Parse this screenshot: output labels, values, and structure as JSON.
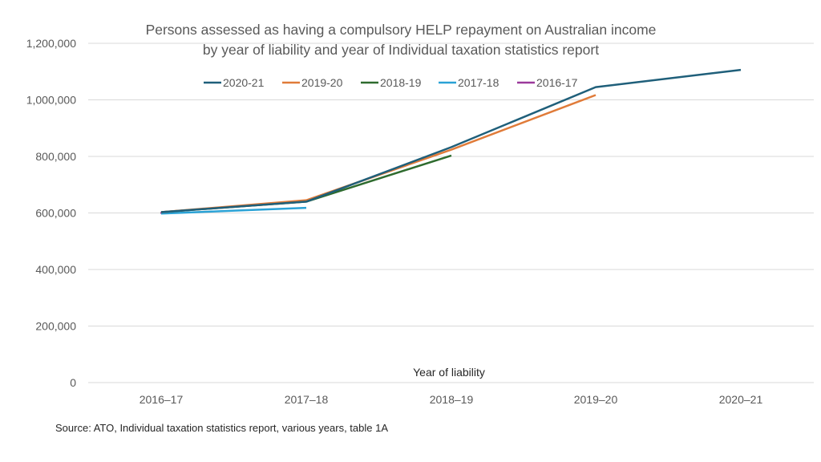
{
  "chart_data": {
    "type": "line",
    "title": [
      "Persons assessed as having a compulsory HELP repayment on Australian income",
      "by year of liability and year of Individual taxation statistics report"
    ],
    "xlabel": "Year of liability",
    "ylabel": "",
    "categories": [
      "2016–17",
      "2017–18",
      "2018–19",
      "2019–20",
      "2020–21"
    ],
    "ylim": [
      0,
      1200000
    ],
    "yticks": [
      0,
      200000,
      400000,
      600000,
      800000,
      1000000,
      1200000
    ],
    "ytick_labels": [
      "0",
      "200,000",
      "400,000",
      "600,000",
      "800,000",
      "1,000,000",
      "1,200,000"
    ],
    "grid": true,
    "legend_position": "top",
    "series": [
      {
        "name": "2020-21",
        "color": "#1f5f7a",
        "values": [
          603000,
          640000,
          833000,
          1045000,
          1106000
        ]
      },
      {
        "name": "2019-20",
        "color": "#e07b39",
        "values": [
          603000,
          645000,
          824000,
          1017000,
          null
        ]
      },
      {
        "name": "2018-19",
        "color": "#2e6b2e",
        "values": [
          603000,
          640000,
          803000,
          null,
          null
        ]
      },
      {
        "name": "2017-18",
        "color": "#2aa2d6",
        "values": [
          598000,
          618000,
          null,
          null,
          null
        ]
      },
      {
        "name": "2016-17",
        "color": "#9b3a9b",
        "values": [
          600000,
          null,
          null,
          null,
          null
        ]
      }
    ]
  },
  "source": "Source: ATO,  Individual taxation statistics report, various years, table 1A"
}
